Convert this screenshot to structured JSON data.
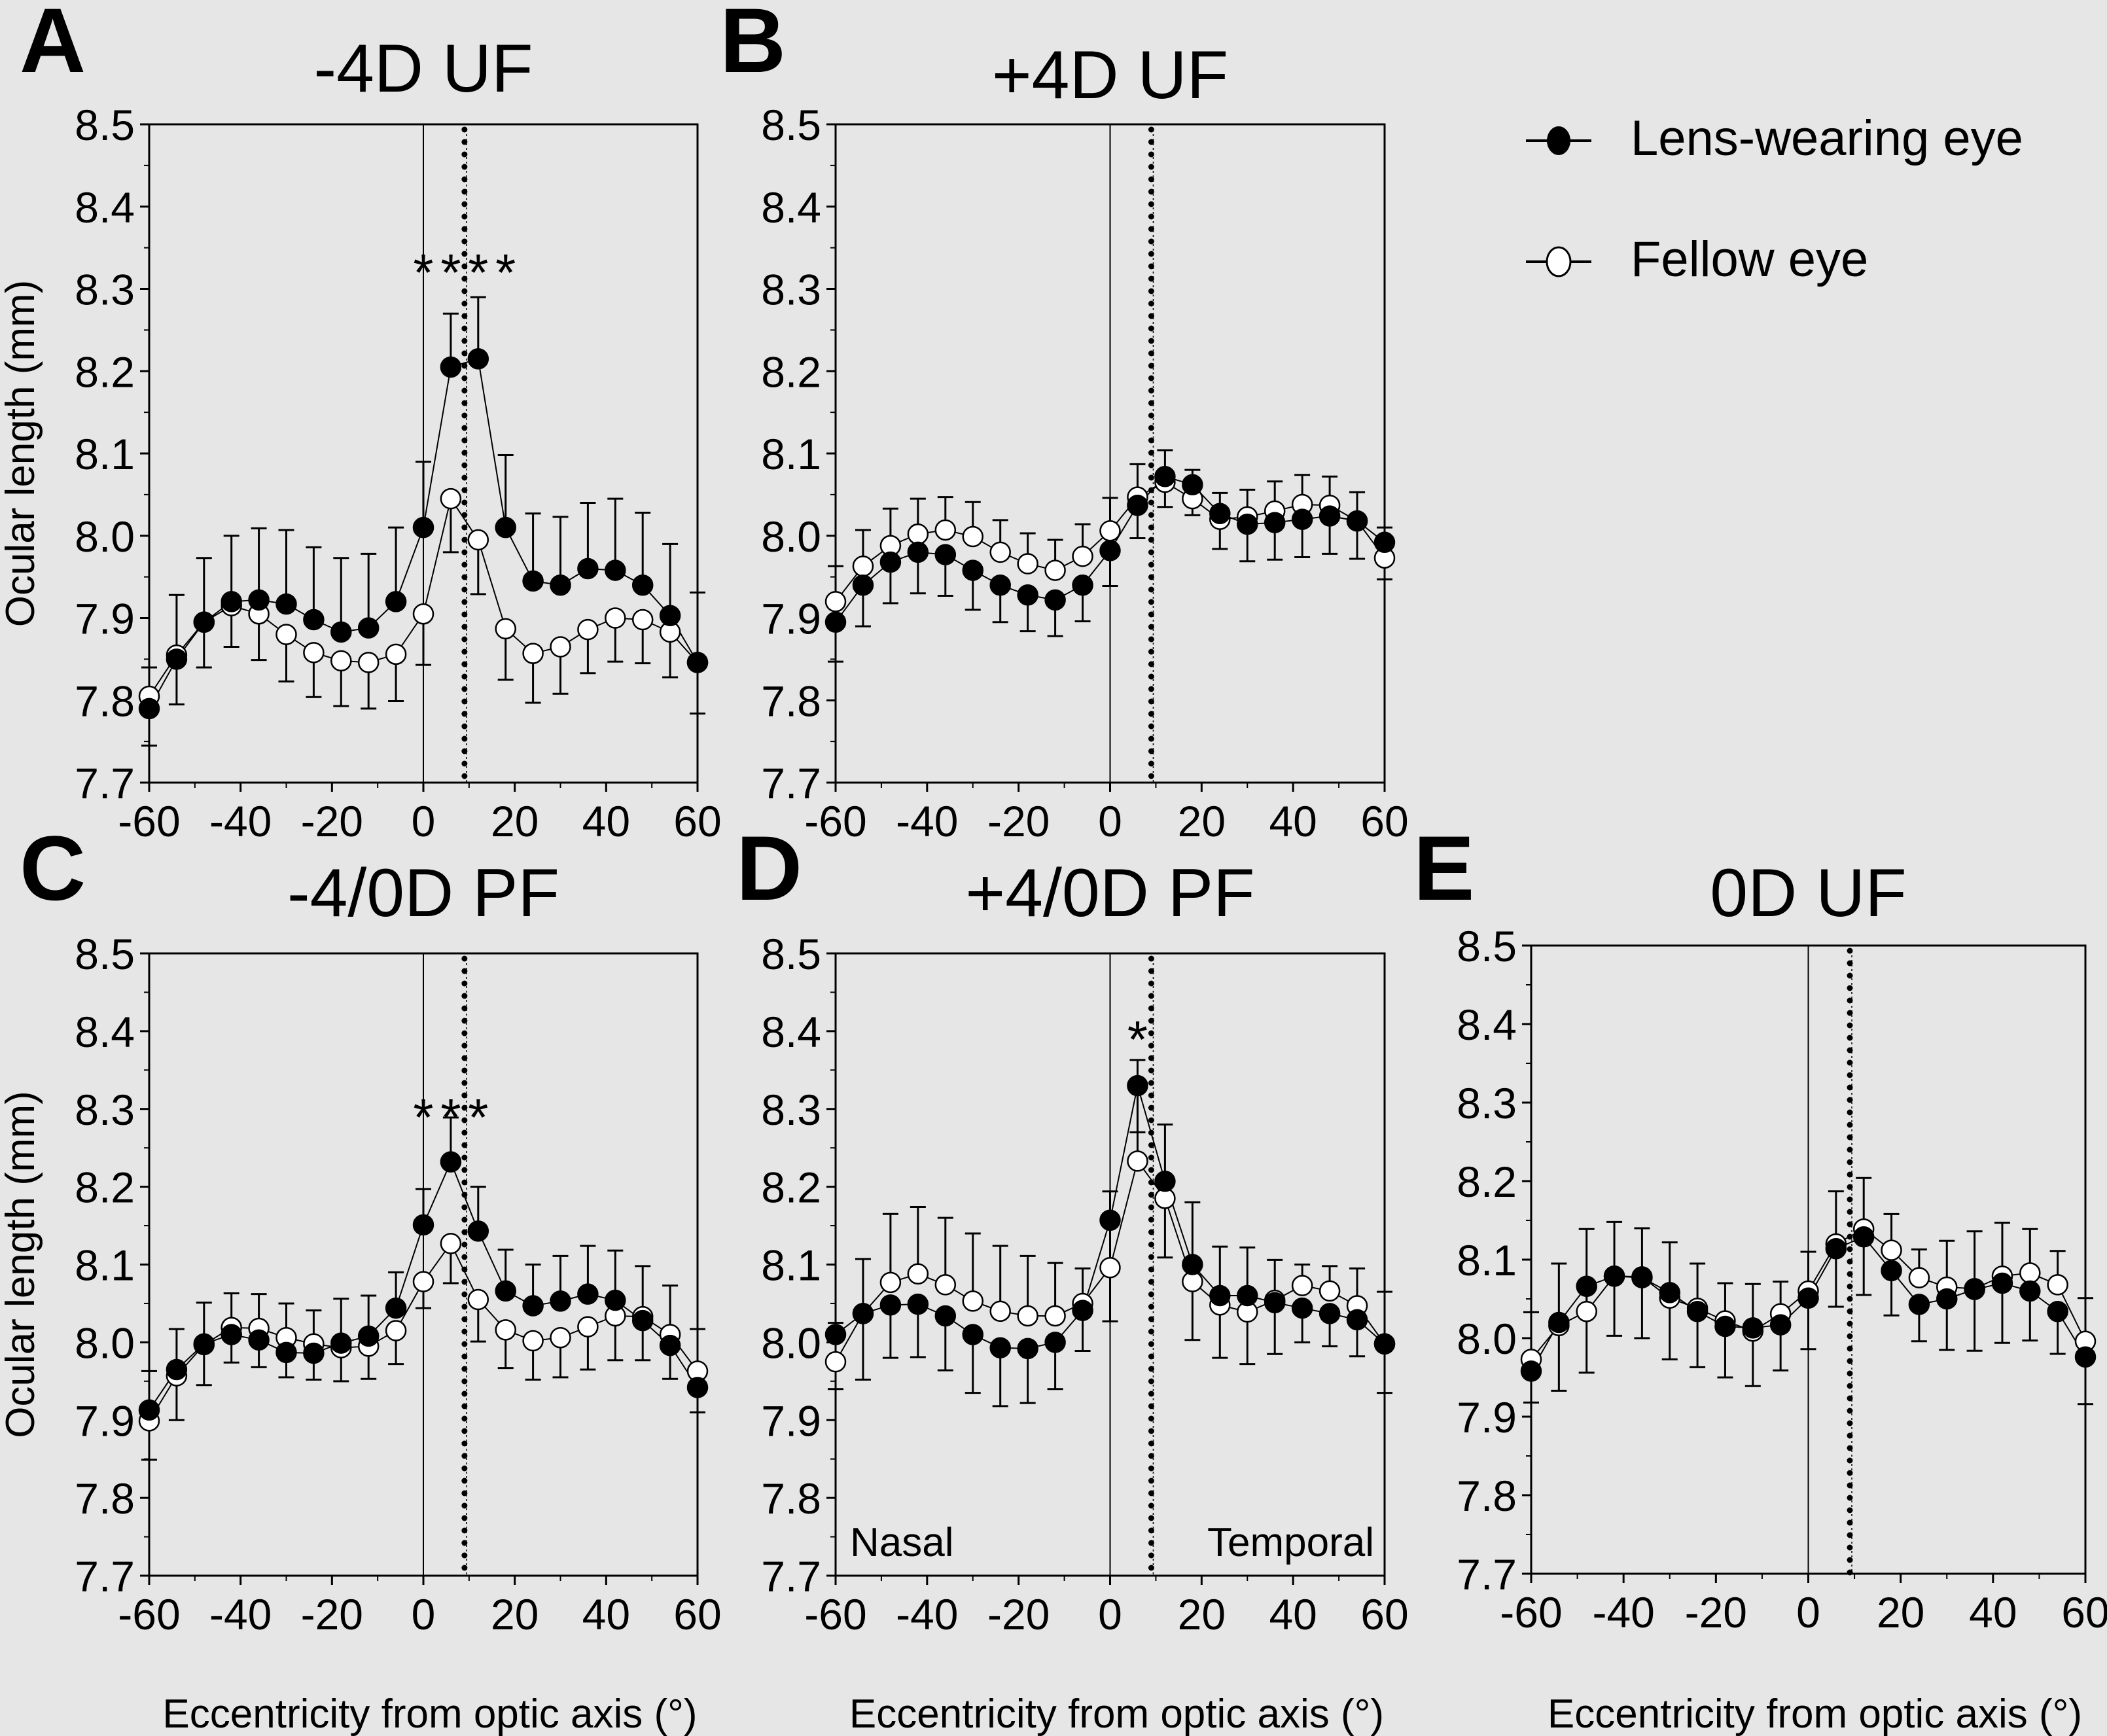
{
  "legend": {
    "items": [
      {
        "label": "Lens-wearing eye",
        "marker": "filled-circle"
      },
      {
        "label": "Fellow eye",
        "marker": "open-circle"
      }
    ]
  },
  "common": {
    "ylabel": "Ocular length (mm)",
    "xlabel": "Eccentricity from optic axis (°)",
    "nasal_label": "Nasal",
    "temporal_label": "Temporal",
    "colors": {
      "background": "#e6e6e6",
      "ink": "#000000",
      "open_fill": "#ffffff"
    }
  },
  "chart_data": [
    {
      "panel": "A",
      "type": "line",
      "title": "-4D UF",
      "xlabel": "",
      "ylabel": "Ocular length (mm)",
      "xlim": [
        -60,
        60
      ],
      "ylim": [
        7.7,
        8.5
      ],
      "xticks": [
        "-60",
        "-40",
        "-20",
        "0",
        "20",
        "40",
        "60"
      ],
      "yticks": [
        "7.7",
        "7.8",
        "7.9",
        "8.0",
        "8.1",
        "8.2",
        "8.3",
        "8.4",
        "8.5"
      ],
      "x": [
        -60,
        -54,
        -48,
        -42,
        -36,
        -30,
        -24,
        -18,
        -12,
        -6,
        0,
        6,
        12,
        18,
        24,
        30,
        36,
        42,
        48,
        54,
        60
      ],
      "reference_lines": {
        "optic_axis": 0,
        "dotted": 9
      },
      "significance": [
        {
          "x": 0,
          "text": "*"
        },
        {
          "x": 6,
          "text": "*"
        },
        {
          "x": 12,
          "text": "*"
        },
        {
          "x": 18,
          "text": "*"
        }
      ],
      "series": [
        {
          "name": "Lens-wearing eye",
          "values": [
            7.79,
            7.85,
            7.895,
            7.92,
            7.922,
            7.917,
            7.898,
            7.883,
            7.888,
            7.92,
            8.01,
            8.205,
            8.215,
            8.01,
            7.945,
            7.94,
            7.96,
            7.958,
            7.94,
            7.903,
            7.846
          ],
          "error_up": [
            0.05,
            0.078,
            0.078,
            0.08,
            0.087,
            0.09,
            0.088,
            0.09,
            0.09,
            0.09,
            0.08,
            0.065,
            0.075,
            0.088,
            0.082,
            0.083,
            0.08,
            0.087,
            0.088,
            0.087,
            0.085
          ]
        },
        {
          "name": "Fellow eye",
          "values": [
            7.805,
            7.855,
            7.895,
            7.915,
            7.905,
            7.88,
            7.858,
            7.848,
            7.846,
            7.856,
            7.905,
            8.045,
            7.995,
            7.887,
            7.857,
            7.865,
            7.886,
            7.9,
            7.898,
            7.883,
            7.846
          ],
          "error_down": [
            0.06,
            0.06,
            0.055,
            0.05,
            0.056,
            0.057,
            0.054,
            0.055,
            0.056,
            0.057,
            0.062,
            0.065,
            0.066,
            0.062,
            0.06,
            0.057,
            0.053,
            0.053,
            0.053,
            0.055,
            0.062
          ]
        }
      ]
    },
    {
      "panel": "B",
      "type": "line",
      "title": "+4D UF",
      "xlabel": "",
      "ylabel": "",
      "xlim": [
        -60,
        60
      ],
      "ylim": [
        7.7,
        8.5
      ],
      "xticks": [
        "-60",
        "-40",
        "-20",
        "0",
        "20",
        "40",
        "60"
      ],
      "yticks": [
        "7.7",
        "7.8",
        "7.9",
        "8.0",
        "8.1",
        "8.2",
        "8.3",
        "8.4",
        "8.5"
      ],
      "x": [
        -60,
        -54,
        -48,
        -42,
        -36,
        -30,
        -24,
        -18,
        -12,
        -6,
        0,
        6,
        12,
        18,
        24,
        30,
        36,
        42,
        48,
        54,
        60
      ],
      "reference_lines": {
        "optic_axis": 0,
        "dotted": 9
      },
      "significance": [],
      "series": [
        {
          "name": "Lens-wearing eye",
          "values": [
            7.895,
            7.94,
            7.968,
            7.98,
            7.977,
            7.958,
            7.94,
            7.928,
            7.922,
            7.94,
            7.982,
            8.037,
            8.072,
            8.062,
            8.027,
            8.014,
            8.016,
            8.02,
            8.024,
            8.018,
            7.992
          ],
          "error_down": [
            0.048,
            0.05,
            0.05,
            0.05,
            0.05,
            0.048,
            0.045,
            0.044,
            0.044,
            0.044,
            0.043,
            0.04,
            0.037,
            0.037,
            0.043,
            0.045,
            0.045,
            0.046,
            0.046,
            0.046,
            0.045
          ]
        },
        {
          "name": "Fellow eye",
          "values": [
            7.92,
            7.963,
            7.988,
            8.002,
            8.007,
            7.999,
            7.98,
            7.966,
            7.958,
            7.975,
            8.006,
            8.047,
            8.065,
            8.045,
            8.02,
            8.023,
            8.03,
            8.038,
            8.037,
            8.018,
            7.973
          ],
          "error_up": [
            0.043,
            0.044,
            0.045,
            0.043,
            0.04,
            0.042,
            0.039,
            0.037,
            0.037,
            0.039,
            0.04,
            0.04,
            0.039,
            0.035,
            0.032,
            0.033,
            0.036,
            0.036,
            0.035,
            0.035,
            0.037
          ]
        }
      ]
    },
    {
      "panel": "C",
      "type": "line",
      "title": "-4/0D PF",
      "xlabel": "Eccentricity from optic axis (°)",
      "ylabel": "Ocular length (mm)",
      "xlim": [
        -60,
        60
      ],
      "ylim": [
        7.7,
        8.5
      ],
      "xticks": [
        "-60",
        "-40",
        "-20",
        "0",
        "20",
        "40",
        "60"
      ],
      "yticks": [
        "7.7",
        "7.8",
        "7.9",
        "8.0",
        "8.1",
        "8.2",
        "8.3",
        "8.4",
        "8.5"
      ],
      "x": [
        -60,
        -54,
        -48,
        -42,
        -36,
        -30,
        -24,
        -18,
        -12,
        -6,
        0,
        6,
        12,
        18,
        24,
        30,
        36,
        42,
        48,
        54,
        60
      ],
      "reference_lines": {
        "optic_axis": 0,
        "dotted": 9
      },
      "significance": [
        {
          "x": 0,
          "text": "*"
        },
        {
          "x": 6,
          "text": "*"
        },
        {
          "x": 12,
          "text": "*"
        }
      ],
      "series": [
        {
          "name": "Lens-wearing eye",
          "values": [
            7.913,
            7.965,
            7.998,
            8.01,
            8.003,
            7.987,
            7.986,
            7.999,
            8.008,
            8.044,
            8.151,
            8.232,
            8.143,
            8.066,
            8.047,
            8.053,
            8.062,
            8.054,
            8.028,
            7.996,
            7.942
          ],
          "error_up": [
            0.05,
            0.052,
            0.053,
            0.053,
            0.059,
            0.063,
            0.055,
            0.057,
            0.052,
            0.046,
            0.046,
            0.057,
            0.057,
            0.053,
            0.053,
            0.058,
            0.062,
            0.064,
            0.07,
            0.077,
            0.075
          ]
        },
        {
          "name": "Fellow eye",
          "values": [
            7.899,
            7.957,
            7.997,
            8.019,
            8.018,
            8.006,
            7.998,
            7.993,
            7.995,
            8.015,
            8.078,
            8.127,
            8.055,
            8.016,
            8.002,
            8.006,
            8.02,
            8.034,
            8.033,
            8.01,
            7.963
          ],
          "error_down": [
            0.05,
            0.057,
            0.052,
            0.045,
            0.05,
            0.051,
            0.046,
            0.043,
            0.042,
            0.043,
            0.034,
            0.051,
            0.054,
            0.049,
            0.05,
            0.051,
            0.055,
            0.057,
            0.056,
            0.057,
            0.053
          ]
        }
      ]
    },
    {
      "panel": "D",
      "type": "line",
      "title": "+4/0D PF",
      "xlabel": "Eccentricity from optic axis (°)",
      "ylabel": "",
      "xlim": [
        -60,
        60
      ],
      "ylim": [
        7.7,
        8.5
      ],
      "xticks": [
        "-60",
        "-40",
        "-20",
        "0",
        "20",
        "40",
        "60"
      ],
      "yticks": [
        "7.7",
        "7.8",
        "7.9",
        "8.0",
        "8.1",
        "8.2",
        "8.3",
        "8.4",
        "8.5"
      ],
      "x": [
        -60,
        -54,
        -48,
        -42,
        -36,
        -30,
        -24,
        -18,
        -12,
        -6,
        0,
        6,
        12,
        18,
        24,
        30,
        36,
        42,
        48,
        54,
        60
      ],
      "reference_lines": {
        "optic_axis": 0,
        "dotted": 9
      },
      "annotations": [
        "Nasal",
        "Temporal"
      ],
      "significance": [
        {
          "x": 6,
          "text": "*"
        }
      ],
      "series": [
        {
          "name": "Lens-wearing eye",
          "values": [
            8.01,
            8.037,
            8.048,
            8.049,
            8.034,
            8.01,
            7.993,
            7.992,
            8.0,
            8.041,
            8.157,
            8.33,
            8.207,
            8.1,
            8.06,
            8.06,
            8.051,
            8.044,
            8.037,
            8.029,
            7.998
          ],
          "error_down": [
            0.07,
            0.085,
            0.068,
            0.068,
            0.07,
            0.075,
            0.075,
            0.07,
            0.06,
            0.052,
            0.13,
            0.06,
            0.098,
            0.097,
            0.08,
            0.088,
            0.066,
            0.044,
            0.042,
            0.047,
            0.063
          ]
        },
        {
          "name": "Fellow eye",
          "values": [
            7.975,
            8.037,
            8.077,
            8.088,
            8.074,
            8.053,
            8.04,
            8.034,
            8.034,
            8.05,
            8.096,
            8.233,
            8.185,
            8.078,
            8.048,
            8.039,
            8.054,
            8.073,
            8.066,
            8.047,
            7.998
          ],
          "error_up": [
            0.05,
            0.07,
            0.088,
            0.086,
            0.086,
            0.087,
            0.084,
            0.077,
            0.068,
            0.045,
            0.098,
            0.13,
            0.095,
            0.102,
            0.075,
            0.083,
            0.052,
            0.027,
            0.032,
            0.048,
            0.067
          ]
        }
      ]
    },
    {
      "panel": "E",
      "type": "line",
      "title": "0D UF",
      "xlabel": "Eccentricity from optic axis (°)",
      "ylabel": "",
      "xlim": [
        -60,
        60
      ],
      "ylim": [
        7.7,
        8.5
      ],
      "xticks": [
        "-60",
        "-40",
        "-20",
        "0",
        "20",
        "40",
        "60"
      ],
      "yticks": [
        "7.7",
        "7.8",
        "7.9",
        "8.0",
        "8.1",
        "8.2",
        "8.3",
        "8.4",
        "8.5"
      ],
      "x": [
        -60,
        -54,
        -48,
        -42,
        -36,
        -30,
        -24,
        -18,
        -12,
        -6,
        0,
        6,
        12,
        18,
        24,
        30,
        36,
        42,
        48,
        54,
        60
      ],
      "reference_lines": {
        "optic_axis": 0,
        "dotted": 9
      },
      "significance": [],
      "series": [
        {
          "name": "Lens-wearing eye",
          "values": [
            7.958,
            8.02,
            8.066,
            8.079,
            8.077,
            8.058,
            8.034,
            8.015,
            8.013,
            8.017,
            8.051,
            8.114,
            8.129,
            8.086,
            8.043,
            8.05,
            8.062,
            8.07,
            8.06,
            8.034,
            7.976
          ],
          "error_down": [
            0.04,
            0.087,
            0.11,
            0.076,
            0.077,
            0.085,
            0.071,
            0.065,
            0.074,
            0.058,
            0.065,
            0.074,
            0.074,
            0.057,
            0.047,
            0.065,
            0.078,
            0.076,
            0.063,
            0.054,
            0.06
          ]
        },
        {
          "name": "Fellow eye",
          "values": [
            7.973,
            8.016,
            8.034,
            8.079,
            8.078,
            8.051,
            8.038,
            8.022,
            8.009,
            8.031,
            8.06,
            8.12,
            8.139,
            8.112,
            8.077,
            8.065,
            8.063,
            8.079,
            8.083,
            8.068,
            7.996
          ],
          "error_up": [
            0.06,
            0.079,
            0.105,
            0.069,
            0.062,
            0.071,
            0.057,
            0.048,
            0.06,
            0.041,
            0.05,
            0.067,
            0.065,
            0.046,
            0.036,
            0.059,
            0.073,
            0.068,
            0.056,
            0.043,
            0.055
          ]
        }
      ]
    }
  ]
}
